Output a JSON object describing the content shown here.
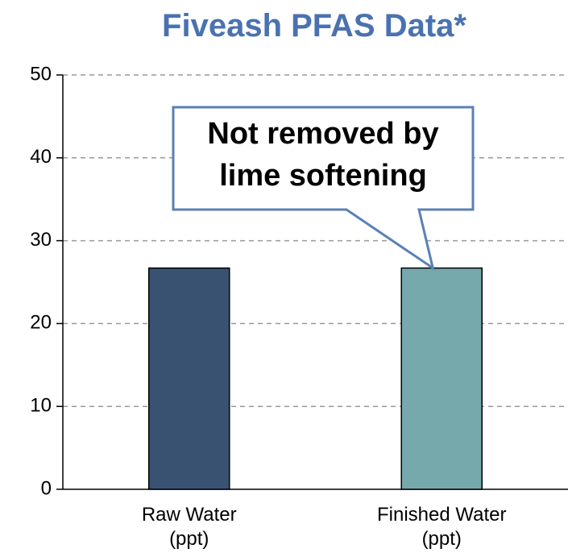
{
  "chart_data": {
    "type": "bar",
    "title": "Fiveash PFAS Data*",
    "categories": [
      "Raw Water\n(ppt)",
      "Finished Water\n(ppt)"
    ],
    "values": [
      26.7,
      26.7
    ],
    "colors": [
      "#3a5272",
      "#76a9ab"
    ],
    "ylim": [
      0,
      50
    ],
    "yticks": [
      0,
      10,
      20,
      30,
      40,
      50
    ],
    "grid": true,
    "annotation": "Not removed by\nlime softening"
  }
}
